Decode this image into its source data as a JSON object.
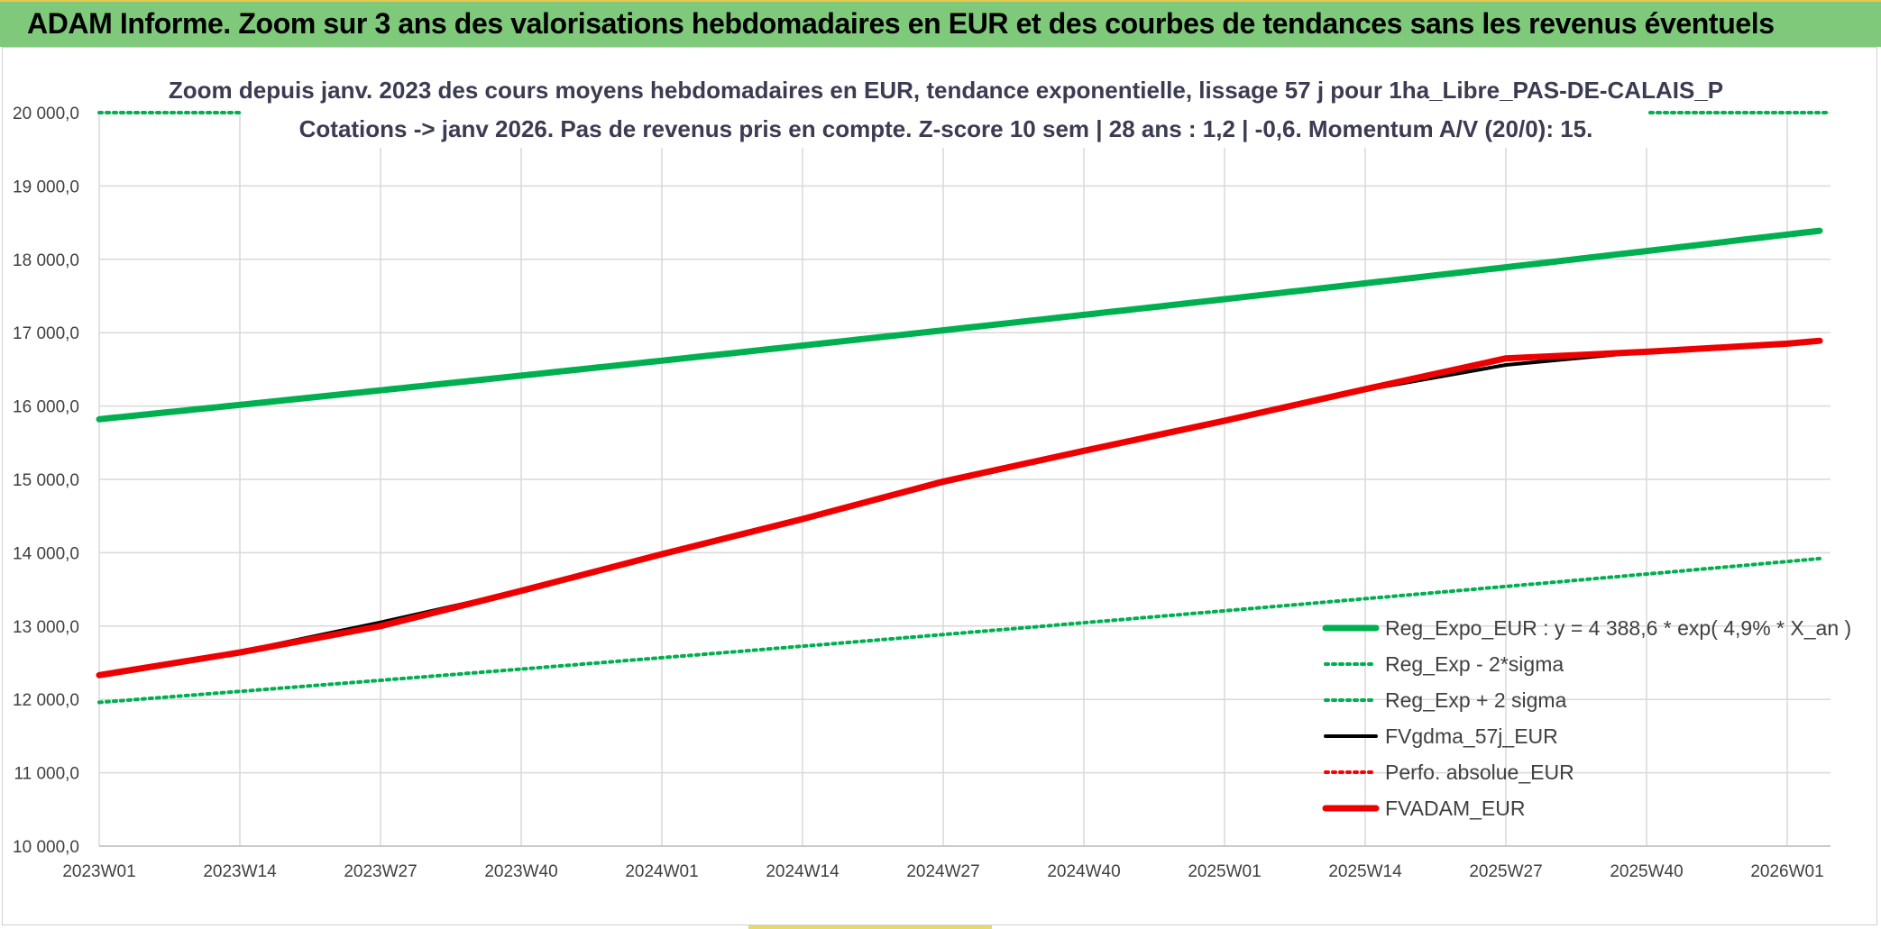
{
  "header": {
    "title": "ADAM Informe. Zoom sur 3 ans des valorisations hebdomadaires en EUR et des courbes de tendances sans les revenus éventuels"
  },
  "chart_data": {
    "type": "line",
    "title_lines": [
      "Zoom depuis janv. 2023 des cours moyens hebdomadaires en EUR, tendance exponentielle, lissage 57 j pour 1ha_Libre_PAS-DE-CALAIS_P",
      "Cotations -> janv 2026. Pas de revenus pris en compte. Z-score 10 sem | 28 ans : 1,2 | -0,6. Momentum A/V (20/0): 15."
    ],
    "xlabel": "",
    "ylabel": "",
    "x_ticks": [
      "2023W01",
      "2023W14",
      "2023W27",
      "2023W40",
      "2024W01",
      "2024W14",
      "2024W27",
      "2024W40",
      "2025W01",
      "2025W14",
      "2025W27",
      "2025W40",
      "2026W01"
    ],
    "y_ticks": [
      "10 000,0",
      "11 000,0",
      "12 000,0",
      "13 000,0",
      "14 000,0",
      "15 000,0",
      "16 000,0",
      "17 000,0",
      "18 000,0",
      "19 000,0",
      "20 000,0"
    ],
    "ylim": [
      10000,
      20000
    ],
    "grid": true,
    "legend_position": "bottom-right",
    "series": [
      {
        "name": "Reg_Expo_EUR : y = 4 388,6 * exp( 4,9% *  X_an )",
        "color": "#00b050",
        "style": "solid-thick",
        "x": [
          "2023W01",
          "2026W04"
        ],
        "y": [
          15820,
          18390
        ],
        "curve": "exponential"
      },
      {
        "name": "Reg_Exp - 2*sigma",
        "color": "#00b050",
        "style": "dotted",
        "x": [
          "2023W01",
          "2026W04"
        ],
        "y": [
          11960,
          13920
        ],
        "curve": "exponential"
      },
      {
        "name": "Reg_Exp + 2 sigma",
        "color": "#00b050",
        "style": "dotted",
        "x": [
          "2023W01",
          "2026W04"
        ],
        "y": [
          20000,
          20000
        ],
        "curve": "clipped-top"
      },
      {
        "name": "FVgdma_57j_EUR",
        "color": "#000000",
        "style": "solid",
        "x": [
          "2023W01",
          "2023W14",
          "2023W27",
          "2023W40",
          "2024W01",
          "2024W14",
          "2024W27",
          "2024W40",
          "2025W01",
          "2025W14",
          "2025W27",
          "2025W40",
          "2026W01",
          "2026W04"
        ],
        "y": [
          12330,
          12650,
          13050,
          13480,
          13980,
          14450,
          14950,
          15380,
          15800,
          16220,
          16560,
          16740,
          16850,
          16890
        ]
      },
      {
        "name": "Perfo. absolue_EUR",
        "color": "#ff0000",
        "style": "dotted",
        "x": [
          "2023W01",
          "2023W14",
          "2023W27",
          "2023W40",
          "2024W01",
          "2024W14",
          "2024W27",
          "2024W40",
          "2025W01",
          "2025W14",
          "2025W27",
          "2025W40",
          "2026W01",
          "2026W04"
        ],
        "y": [
          12330,
          12640,
          13000,
          13480,
          13980,
          14460,
          14970,
          15390,
          15800,
          16230,
          16650,
          16740,
          16850,
          16890
        ]
      },
      {
        "name": "FVADAM_EUR",
        "color": "#ee0000",
        "style": "solid-thick",
        "x": [
          "2023W01",
          "2023W14",
          "2023W27",
          "2023W40",
          "2024W01",
          "2024W14",
          "2024W27",
          "2024W40",
          "2025W01",
          "2025W14",
          "2025W27",
          "2025W40",
          "2026W01",
          "2026W04"
        ],
        "y": [
          12330,
          12640,
          13000,
          13480,
          13980,
          14460,
          14970,
          15390,
          15800,
          16230,
          16650,
          16740,
          16850,
          16890
        ]
      }
    ]
  }
}
